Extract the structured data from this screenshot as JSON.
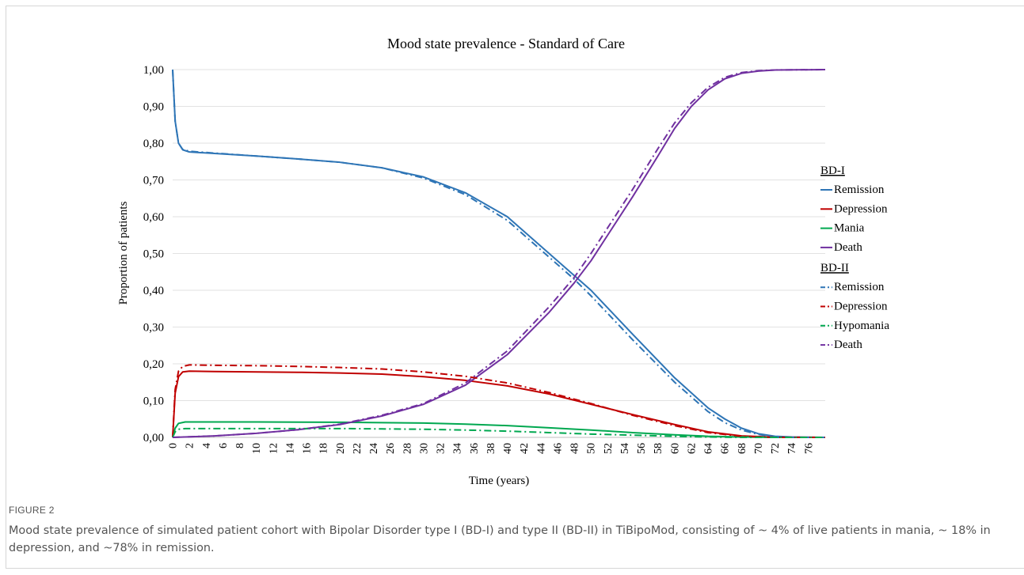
{
  "figure": {
    "label": "FIGURE 2",
    "caption": "Mood state prevalence of simulated patient cohort with Bipolar Disorder type I (BD-I) and type II (BD-II) in TiBipoMod, consisting of ~ 4% of live patients in mania, ~ 18% in depression, and ~78% in remission."
  },
  "chart_data": {
    "type": "line",
    "title": "Mood state prevalence - Standard of Care",
    "xlabel": "Time (years)",
    "ylabel": "Proportion of patients",
    "xlim": [
      0,
      78
    ],
    "ylim": [
      0,
      1
    ],
    "x_ticks": [
      0,
      2,
      4,
      6,
      8,
      10,
      12,
      14,
      16,
      18,
      20,
      22,
      24,
      26,
      28,
      30,
      32,
      34,
      36,
      38,
      40,
      42,
      44,
      46,
      48,
      50,
      52,
      54,
      56,
      58,
      60,
      62,
      64,
      66,
      68,
      70,
      72,
      74,
      76
    ],
    "y_ticks": [
      "0,00",
      "0,10",
      "0,20",
      "0,30",
      "0,40",
      "0,50",
      "0,60",
      "0,70",
      "0,80",
      "0,90",
      "1,00"
    ],
    "y_tick_values": [
      0,
      0.1,
      0.2,
      0.3,
      0.4,
      0.5,
      0.6,
      0.7,
      0.8,
      0.9,
      1.0
    ],
    "grid": "horizontal",
    "legend_position": "right",
    "legend_groups": [
      "BD-I",
      "BD-II"
    ],
    "series": [
      {
        "name": "Remission",
        "group": "BD-I",
        "color": "#2e75b6",
        "dash": "solid",
        "points": [
          [
            0,
            1.0
          ],
          [
            0.3,
            0.86
          ],
          [
            0.7,
            0.8
          ],
          [
            1.2,
            0.782
          ],
          [
            2,
            0.776
          ],
          [
            5,
            0.772
          ],
          [
            10,
            0.765
          ],
          [
            15,
            0.757
          ],
          [
            20,
            0.748
          ],
          [
            25,
            0.733
          ],
          [
            30,
            0.708
          ],
          [
            35,
            0.665
          ],
          [
            40,
            0.6
          ],
          [
            45,
            0.5
          ],
          [
            48,
            0.44
          ],
          [
            50,
            0.4
          ],
          [
            55,
            0.28
          ],
          [
            60,
            0.162
          ],
          [
            64,
            0.08
          ],
          [
            66,
            0.05
          ],
          [
            68,
            0.025
          ],
          [
            70,
            0.01
          ],
          [
            72,
            0.003
          ],
          [
            74,
            0.001
          ],
          [
            78,
            0.0
          ]
        ]
      },
      {
        "name": "Depression",
        "group": "BD-I",
        "color": "#c00000",
        "dash": "solid",
        "points": [
          [
            0,
            0.0
          ],
          [
            0.3,
            0.12
          ],
          [
            0.7,
            0.165
          ],
          [
            1.2,
            0.178
          ],
          [
            2,
            0.18
          ],
          [
            5,
            0.179
          ],
          [
            10,
            0.178
          ],
          [
            15,
            0.177
          ],
          [
            20,
            0.175
          ],
          [
            25,
            0.172
          ],
          [
            30,
            0.165
          ],
          [
            35,
            0.155
          ],
          [
            40,
            0.14
          ],
          [
            45,
            0.118
          ],
          [
            50,
            0.09
          ],
          [
            55,
            0.062
          ],
          [
            60,
            0.035
          ],
          [
            64,
            0.015
          ],
          [
            68,
            0.004
          ],
          [
            72,
            0.0005
          ],
          [
            78,
            0.0
          ]
        ]
      },
      {
        "name": "Mania",
        "group": "BD-I",
        "color": "#00a850",
        "dash": "solid",
        "points": [
          [
            0,
            0.0
          ],
          [
            0.3,
            0.025
          ],
          [
            0.7,
            0.038
          ],
          [
            1.5,
            0.042
          ],
          [
            5,
            0.042
          ],
          [
            10,
            0.042
          ],
          [
            20,
            0.041
          ],
          [
            25,
            0.04
          ],
          [
            30,
            0.039
          ],
          [
            35,
            0.036
          ],
          [
            40,
            0.032
          ],
          [
            45,
            0.026
          ],
          [
            50,
            0.02
          ],
          [
            55,
            0.013
          ],
          [
            60,
            0.007
          ],
          [
            64,
            0.003
          ],
          [
            68,
            0.001
          ],
          [
            72,
            0.0
          ],
          [
            78,
            0.0
          ]
        ]
      },
      {
        "name": "Death",
        "group": "BD-I",
        "color": "#7030a0",
        "dash": "solid",
        "points": [
          [
            0,
            0.0
          ],
          [
            5,
            0.004
          ],
          [
            10,
            0.011
          ],
          [
            15,
            0.021
          ],
          [
            20,
            0.035
          ],
          [
            25,
            0.058
          ],
          [
            30,
            0.09
          ],
          [
            35,
            0.142
          ],
          [
            40,
            0.225
          ],
          [
            45,
            0.34
          ],
          [
            48,
            0.42
          ],
          [
            50,
            0.48
          ],
          [
            52,
            0.55
          ],
          [
            55,
            0.655
          ],
          [
            58,
            0.765
          ],
          [
            60,
            0.84
          ],
          [
            62,
            0.9
          ],
          [
            64,
            0.945
          ],
          [
            66,
            0.975
          ],
          [
            68,
            0.99
          ],
          [
            70,
            0.996
          ],
          [
            72,
            0.999
          ],
          [
            78,
            1.0
          ]
        ]
      },
      {
        "name": "Remission",
        "group": "BD-II",
        "color": "#2e75b6",
        "dash": "dashdot",
        "points": [
          [
            0,
            1.0
          ],
          [
            0.3,
            0.86
          ],
          [
            0.7,
            0.8
          ],
          [
            1.2,
            0.783
          ],
          [
            2,
            0.778
          ],
          [
            5,
            0.773
          ],
          [
            10,
            0.765
          ],
          [
            15,
            0.757
          ],
          [
            20,
            0.748
          ],
          [
            25,
            0.733
          ],
          [
            30,
            0.705
          ],
          [
            35,
            0.66
          ],
          [
            40,
            0.59
          ],
          [
            45,
            0.49
          ],
          [
            48,
            0.43
          ],
          [
            50,
            0.385
          ],
          [
            55,
            0.265
          ],
          [
            60,
            0.15
          ],
          [
            64,
            0.07
          ],
          [
            66,
            0.04
          ],
          [
            68,
            0.02
          ],
          [
            70,
            0.008
          ],
          [
            72,
            0.002
          ],
          [
            74,
            0.0
          ],
          [
            78,
            0.0
          ]
        ]
      },
      {
        "name": "Depression",
        "group": "BD-II",
        "color": "#c00000",
        "dash": "dashdot",
        "points": [
          [
            0,
            0.0
          ],
          [
            0.3,
            0.13
          ],
          [
            0.7,
            0.18
          ],
          [
            1.2,
            0.193
          ],
          [
            2,
            0.197
          ],
          [
            5,
            0.196
          ],
          [
            10,
            0.195
          ],
          [
            15,
            0.193
          ],
          [
            20,
            0.19
          ],
          [
            25,
            0.186
          ],
          [
            30,
            0.178
          ],
          [
            35,
            0.166
          ],
          [
            40,
            0.148
          ],
          [
            45,
            0.122
          ],
          [
            50,
            0.092
          ],
          [
            55,
            0.06
          ],
          [
            60,
            0.032
          ],
          [
            64,
            0.013
          ],
          [
            68,
            0.003
          ],
          [
            72,
            0.0
          ],
          [
            78,
            0.0
          ]
        ]
      },
      {
        "name": "Hypomania",
        "group": "BD-II",
        "color": "#00a850",
        "dash": "dashdot",
        "points": [
          [
            0,
            0.0
          ],
          [
            0.3,
            0.015
          ],
          [
            0.7,
            0.022
          ],
          [
            1.5,
            0.024
          ],
          [
            5,
            0.024
          ],
          [
            10,
            0.024
          ],
          [
            20,
            0.024
          ],
          [
            25,
            0.023
          ],
          [
            30,
            0.022
          ],
          [
            35,
            0.02
          ],
          [
            40,
            0.017
          ],
          [
            45,
            0.013
          ],
          [
            50,
            0.009
          ],
          [
            55,
            0.006
          ],
          [
            60,
            0.003
          ],
          [
            64,
            0.001
          ],
          [
            68,
            0.0
          ],
          [
            78,
            0.0
          ]
        ]
      },
      {
        "name": "Death",
        "group": "BD-II",
        "color": "#7030a0",
        "dash": "dashdot",
        "points": [
          [
            0,
            0.0
          ],
          [
            5,
            0.004
          ],
          [
            10,
            0.011
          ],
          [
            15,
            0.021
          ],
          [
            20,
            0.036
          ],
          [
            25,
            0.06
          ],
          [
            30,
            0.092
          ],
          [
            35,
            0.148
          ],
          [
            40,
            0.235
          ],
          [
            45,
            0.355
          ],
          [
            48,
            0.435
          ],
          [
            50,
            0.5
          ],
          [
            52,
            0.57
          ],
          [
            55,
            0.675
          ],
          [
            58,
            0.785
          ],
          [
            60,
            0.855
          ],
          [
            62,
            0.91
          ],
          [
            64,
            0.952
          ],
          [
            66,
            0.979
          ],
          [
            68,
            0.992
          ],
          [
            70,
            0.997
          ],
          [
            72,
            0.999
          ],
          [
            78,
            1.0
          ]
        ]
      }
    ]
  }
}
